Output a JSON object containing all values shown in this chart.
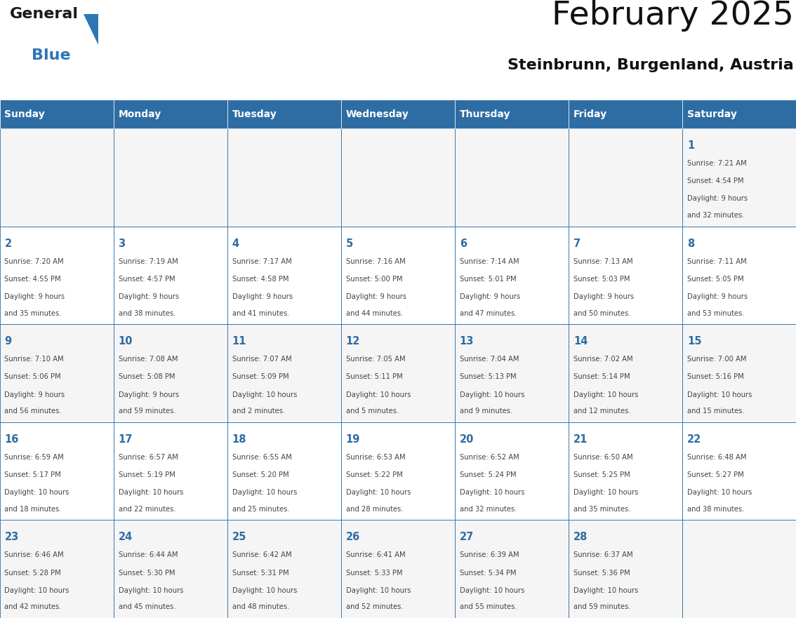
{
  "title": "February 2025",
  "subtitle": "Steinbrunn, Burgenland, Austria",
  "days_of_week": [
    "Sunday",
    "Monday",
    "Tuesday",
    "Wednesday",
    "Thursday",
    "Friday",
    "Saturday"
  ],
  "header_bg": "#2E6DA4",
  "header_text": "#FFFFFF",
  "cell_bg_odd": "#F5F5F5",
  "cell_bg_even": "#FFFFFF",
  "border_color": "#2E6DA4",
  "text_color": "#444444",
  "number_color": "#2E6DA4",
  "logo_general_color": "#1a1a1a",
  "logo_blue_color": "#2E75B6",
  "calendar_data": [
    [
      null,
      null,
      null,
      null,
      null,
      null,
      {
        "day": 1,
        "sunrise": "7:21 AM",
        "sunset": "4:54 PM",
        "daylight": "9 hours and 32 minutes"
      }
    ],
    [
      {
        "day": 2,
        "sunrise": "7:20 AM",
        "sunset": "4:55 PM",
        "daylight": "9 hours and 35 minutes"
      },
      {
        "day": 3,
        "sunrise": "7:19 AM",
        "sunset": "4:57 PM",
        "daylight": "9 hours and 38 minutes"
      },
      {
        "day": 4,
        "sunrise": "7:17 AM",
        "sunset": "4:58 PM",
        "daylight": "9 hours and 41 minutes"
      },
      {
        "day": 5,
        "sunrise": "7:16 AM",
        "sunset": "5:00 PM",
        "daylight": "9 hours and 44 minutes"
      },
      {
        "day": 6,
        "sunrise": "7:14 AM",
        "sunset": "5:01 PM",
        "daylight": "9 hours and 47 minutes"
      },
      {
        "day": 7,
        "sunrise": "7:13 AM",
        "sunset": "5:03 PM",
        "daylight": "9 hours and 50 minutes"
      },
      {
        "day": 8,
        "sunrise": "7:11 AM",
        "sunset": "5:05 PM",
        "daylight": "9 hours and 53 minutes"
      }
    ],
    [
      {
        "day": 9,
        "sunrise": "7:10 AM",
        "sunset": "5:06 PM",
        "daylight": "9 hours and 56 minutes"
      },
      {
        "day": 10,
        "sunrise": "7:08 AM",
        "sunset": "5:08 PM",
        "daylight": "9 hours and 59 minutes"
      },
      {
        "day": 11,
        "sunrise": "7:07 AM",
        "sunset": "5:09 PM",
        "daylight": "10 hours and 2 minutes"
      },
      {
        "day": 12,
        "sunrise": "7:05 AM",
        "sunset": "5:11 PM",
        "daylight": "10 hours and 5 minutes"
      },
      {
        "day": 13,
        "sunrise": "7:04 AM",
        "sunset": "5:13 PM",
        "daylight": "10 hours and 9 minutes"
      },
      {
        "day": 14,
        "sunrise": "7:02 AM",
        "sunset": "5:14 PM",
        "daylight": "10 hours and 12 minutes"
      },
      {
        "day": 15,
        "sunrise": "7:00 AM",
        "sunset": "5:16 PM",
        "daylight": "10 hours and 15 minutes"
      }
    ],
    [
      {
        "day": 16,
        "sunrise": "6:59 AM",
        "sunset": "5:17 PM",
        "daylight": "10 hours and 18 minutes"
      },
      {
        "day": 17,
        "sunrise": "6:57 AM",
        "sunset": "5:19 PM",
        "daylight": "10 hours and 22 minutes"
      },
      {
        "day": 18,
        "sunrise": "6:55 AM",
        "sunset": "5:20 PM",
        "daylight": "10 hours and 25 minutes"
      },
      {
        "day": 19,
        "sunrise": "6:53 AM",
        "sunset": "5:22 PM",
        "daylight": "10 hours and 28 minutes"
      },
      {
        "day": 20,
        "sunrise": "6:52 AM",
        "sunset": "5:24 PM",
        "daylight": "10 hours and 32 minutes"
      },
      {
        "day": 21,
        "sunrise": "6:50 AM",
        "sunset": "5:25 PM",
        "daylight": "10 hours and 35 minutes"
      },
      {
        "day": 22,
        "sunrise": "6:48 AM",
        "sunset": "5:27 PM",
        "daylight": "10 hours and 38 minutes"
      }
    ],
    [
      {
        "day": 23,
        "sunrise": "6:46 AM",
        "sunset": "5:28 PM",
        "daylight": "10 hours and 42 minutes"
      },
      {
        "day": 24,
        "sunrise": "6:44 AM",
        "sunset": "5:30 PM",
        "daylight": "10 hours and 45 minutes"
      },
      {
        "day": 25,
        "sunrise": "6:42 AM",
        "sunset": "5:31 PM",
        "daylight": "10 hours and 48 minutes"
      },
      {
        "day": 26,
        "sunrise": "6:41 AM",
        "sunset": "5:33 PM",
        "daylight": "10 hours and 52 minutes"
      },
      {
        "day": 27,
        "sunrise": "6:39 AM",
        "sunset": "5:34 PM",
        "daylight": "10 hours and 55 minutes"
      },
      {
        "day": 28,
        "sunrise": "6:37 AM",
        "sunset": "5:36 PM",
        "daylight": "10 hours and 59 minutes"
      },
      null
    ]
  ]
}
